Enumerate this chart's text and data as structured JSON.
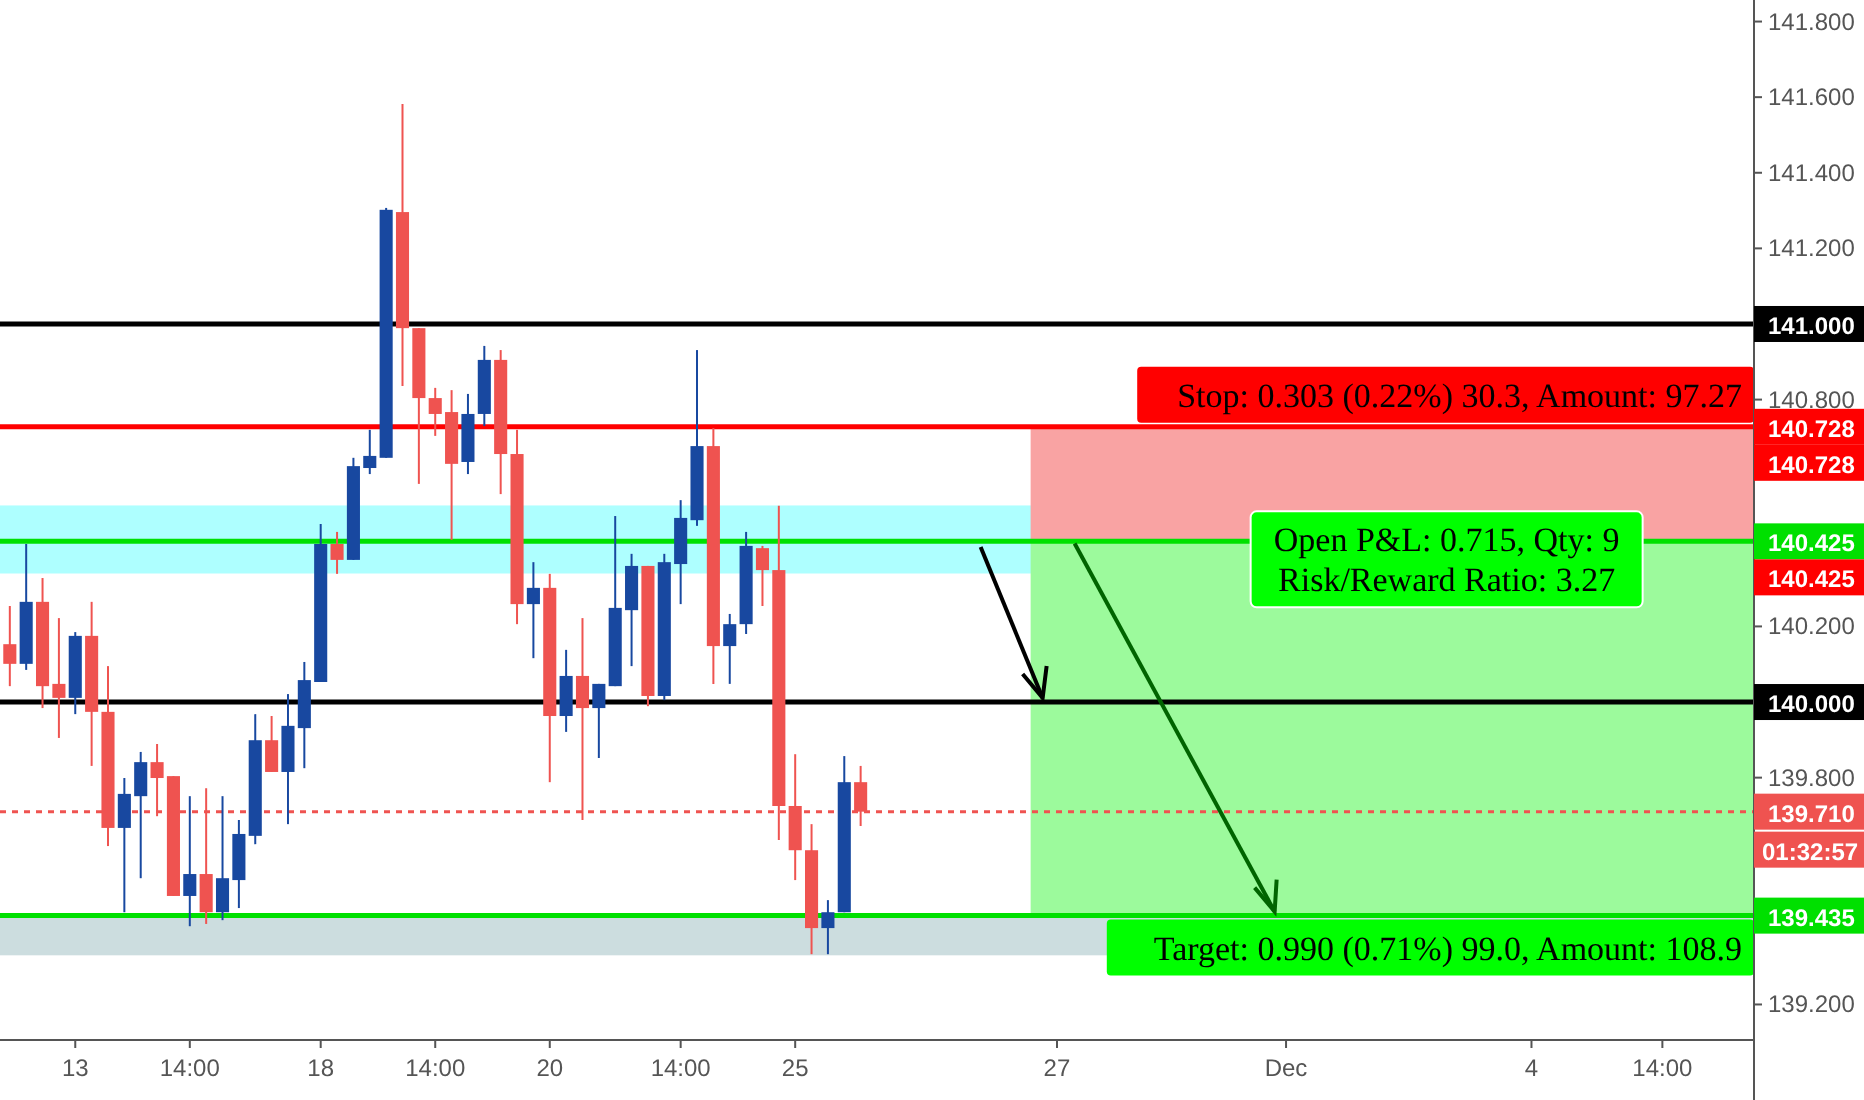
{
  "chart_data": {
    "type": "candlestick",
    "categories": [
      null,
      null,
      null,
      null,
      "13",
      null,
      null,
      null,
      null,
      null,
      null,
      "14:00",
      null,
      null,
      null,
      null,
      null,
      null,
      null,
      "18",
      null,
      null,
      null,
      null,
      null,
      null,
      "14:00",
      null,
      null,
      null,
      null,
      null,
      null,
      "20",
      null,
      null,
      null,
      null,
      null,
      null,
      null,
      "14:00",
      null,
      null,
      null,
      null,
      null,
      null,
      "25",
      null,
      null,
      null,
      null,
      null,
      null,
      null,
      null,
      null,
      null,
      null,
      null,
      null,
      null,
      null,
      "27",
      null,
      null,
      null,
      null,
      null,
      null,
      null,
      null,
      null,
      null,
      null,
      null,
      null,
      "Dec",
      null,
      null,
      null,
      null,
      null,
      null,
      null,
      null,
      null,
      null,
      null,
      null,
      null,
      null,
      "4",
      null,
      null,
      null,
      null,
      null,
      null,
      null,
      "14:00",
      null,
      null,
      null,
      null,
      null
    ],
    "ohlc": [
      [
        140.153,
        140.254,
        140.042,
        140.101
      ],
      [
        140.101,
        140.418,
        140.085,
        140.265
      ],
      [
        140.265,
        140.328,
        139.984,
        140.042
      ],
      [
        140.048,
        140.222,
        139.905,
        140.011
      ],
      [
        140.011,
        140.185,
        139.968,
        140.175
      ],
      [
        140.175,
        140.265,
        139.831,
        139.974
      ],
      [
        139.974,
        140.095,
        139.619,
        139.667
      ],
      [
        139.667,
        139.799,
        139.444,
        139.757
      ],
      [
        139.751,
        139.868,
        139.534,
        139.841
      ],
      [
        139.841,
        139.889,
        139.698,
        139.799
      ],
      [
        139.804,
        139.804,
        139.487,
        139.487
      ],
      [
        139.487,
        139.751,
        139.407,
        139.545
      ],
      [
        139.545,
        139.772,
        139.413,
        139.444
      ],
      [
        139.444,
        139.751,
        139.423,
        139.534
      ],
      [
        139.529,
        139.688,
        139.455,
        139.651
      ],
      [
        139.646,
        139.968,
        139.624,
        139.899
      ],
      [
        139.899,
        139.963,
        139.815,
        139.815
      ],
      [
        139.815,
        140.021,
        139.677,
        139.937
      ],
      [
        139.931,
        140.106,
        139.825,
        140.058
      ],
      [
        140.053,
        140.471,
        140.053,
        140.418
      ],
      [
        140.418,
        140.45,
        140.339,
        140.376
      ],
      [
        140.376,
        140.646,
        140.376,
        140.624
      ],
      [
        140.619,
        140.72,
        140.603,
        140.651
      ],
      [
        140.646,
        141.307,
        140.646,
        141.302
      ],
      [
        141.296,
        141.582,
        140.836,
        140.989
      ],
      [
        140.989,
        140.989,
        140.577,
        140.804
      ],
      [
        140.804,
        140.831,
        140.704,
        140.762
      ],
      [
        140.767,
        140.825,
        140.429,
        140.63
      ],
      [
        140.635,
        140.815,
        140.603,
        140.762
      ],
      [
        140.762,
        140.942,
        140.73,
        140.905
      ],
      [
        140.905,
        140.931,
        140.55,
        140.656
      ],
      [
        140.656,
        140.72,
        140.206,
        140.259
      ],
      [
        140.259,
        140.37,
        140.116,
        140.302
      ],
      [
        140.302,
        140.339,
        139.788,
        139.963
      ],
      [
        139.963,
        140.138,
        139.921,
        140.069
      ],
      [
        140.069,
        140.222,
        139.688,
        139.984
      ],
      [
        139.984,
        140.048,
        139.852,
        140.048
      ],
      [
        140.042,
        140.492,
        140.042,
        140.249
      ],
      [
        140.243,
        140.392,
        140.095,
        140.36
      ],
      [
        140.36,
        140.36,
        139.989,
        140.016
      ],
      [
        140.016,
        140.392,
        140.005,
        140.37
      ],
      [
        140.365,
        140.534,
        140.259,
        140.487
      ],
      [
        140.481,
        140.931,
        140.466,
        140.677
      ],
      [
        140.677,
        140.725,
        140.048,
        140.148
      ],
      [
        140.148,
        140.233,
        140.048,
        140.206
      ],
      [
        140.206,
        140.45,
        140.18,
        140.413
      ],
      [
        140.407,
        140.413,
        140.254,
        140.349
      ],
      [
        140.349,
        140.519,
        139.635,
        139.725
      ],
      [
        139.725,
        139.862,
        139.529,
        139.608
      ],
      [
        139.608,
        139.677,
        139.333,
        139.402
      ],
      [
        139.402,
        139.476,
        139.333,
        139.444
      ],
      [
        139.444,
        139.857,
        139.444,
        139.788
      ],
      [
        139.788,
        139.831,
        139.672,
        139.71
      ],
      null,
      null,
      null,
      null,
      null,
      null,
      null,
      null,
      null,
      null,
      null,
      null,
      null,
      null,
      null,
      null,
      null,
      null,
      null,
      null,
      null,
      null,
      null,
      null,
      null,
      null,
      null,
      null,
      null,
      null,
      null,
      null,
      null,
      null,
      null,
      null,
      null,
      null,
      null,
      null,
      null,
      null,
      null,
      null,
      null,
      null,
      null,
      null,
      null,
      null,
      null,
      null,
      null,
      null
    ],
    "colors": [
      "#ef5350",
      "#1848a0",
      "#ef5350",
      "#ef5350",
      "#1848a0",
      "#ef5350",
      "#ef5350",
      "#1848a0",
      "#1848a0",
      "#ef5350",
      "#ef5350",
      "#1848a0",
      "#ef5350",
      "#1848a0",
      "#1848a0",
      "#1848a0",
      "#ef5350",
      "#1848a0",
      "#1848a0",
      "#1848a0",
      "#ef5350",
      "#1848a0",
      "#1848a0",
      "#1848a0",
      "#ef5350",
      "#ef5350",
      "#ef5350",
      "#ef5350",
      "#1848a0",
      "#1848a0",
      "#ef5350",
      "#ef5350",
      "#1848a0",
      "#ef5350",
      "#1848a0",
      "#ef5350",
      "#1848a0",
      "#1848a0",
      "#1848a0",
      "#ef5350",
      "#1848a0",
      "#1848a0",
      "#1848a0",
      "#ef5350",
      "#1848a0",
      "#1848a0",
      "#ef5350",
      "#ef5350",
      "#ef5350",
      "#ef5350",
      "#1848a0",
      "#1848a0",
      "#ef5350",
      null,
      null,
      null,
      null,
      null,
      null,
      null,
      null,
      null,
      null,
      null,
      null,
      null,
      null,
      null,
      null,
      null,
      null,
      null,
      null,
      null,
      null,
      null,
      null,
      null,
      null,
      null,
      null,
      null,
      null,
      null,
      null,
      null,
      null,
      null,
      null,
      null,
      null,
      null,
      null,
      null,
      null,
      null,
      null,
      null,
      null,
      null,
      null,
      null,
      null,
      null,
      null,
      null,
      null
    ],
    "ylim": [
      139.106,
      141.857
    ],
    "yticks": [
      {
        "value": 139.2,
        "label": "139.200"
      },
      {
        "value": 139.8,
        "label": "139.800"
      },
      {
        "value": 140.2,
        "label": "140.200"
      },
      {
        "value": 140.8,
        "label": "140.800"
      },
      {
        "value": 141.2,
        "label": "141.200"
      },
      {
        "value": 141.4,
        "label": "141.400"
      },
      {
        "value": 141.6,
        "label": "141.600"
      },
      {
        "value": 141.8,
        "label": "141.800"
      }
    ],
    "bands": [
      {
        "axis": "y",
        "from": 140.34,
        "to": 140.52,
        "color": "#a5ffff"
      },
      {
        "axis": "y",
        "from": 139.33,
        "to": 139.43,
        "color": "#c7d9dc"
      },
      {
        "axis": "y",
        "from": 140.425,
        "to": 140.728,
        "color": "#f9a3a3",
        "label": "Stop: 0.303 (0.22%) 30.3, Amount: 97.27"
      },
      {
        "axis": "y",
        "from": 139.435,
        "to": 140.425,
        "color": "#9cfa9c",
        "label": "Target: 0.990 (0.71%) 99.0, Amount: 108.9"
      }
    ],
    "ref_lines": [
      {
        "axis": "y",
        "value": 141,
        "label": "141.000",
        "color": "#000000"
      },
      {
        "axis": "y",
        "value": 140.728,
        "label": "140.728",
        "color": "#ff0000"
      },
      {
        "axis": "y",
        "value": 140.425,
        "label": "140.425",
        "color": "#00e000"
      },
      {
        "axis": "y",
        "value": 140,
        "label": "140.000",
        "color": "#000000"
      },
      {
        "axis": "y",
        "value": 139.71,
        "label": "139.710",
        "color": "#ef5350",
        "line_style": "dotted"
      },
      {
        "axis": "y",
        "value": 139.435,
        "label": "139.435",
        "color": "#00e000"
      }
    ],
    "annotations": [
      "Open P&L: 0.715, Qty: 9",
      "Risk/Reward Ratio: 3.27",
      "01:32:57",
      "140.728",
      "140.425"
    ]
  }
}
